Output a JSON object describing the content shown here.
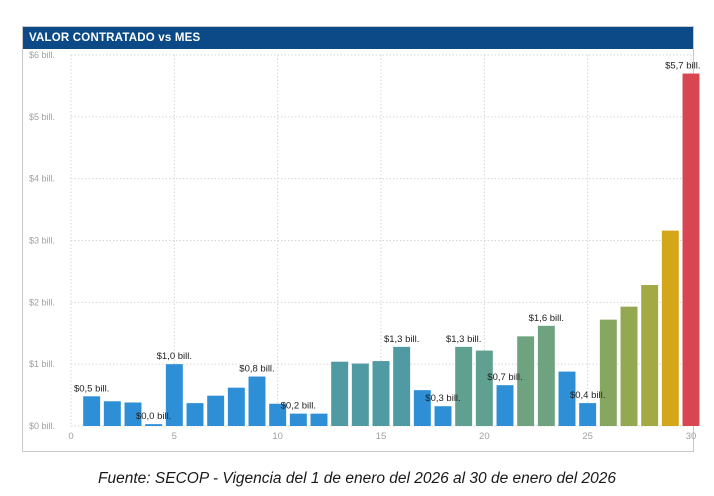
{
  "chart_title": "VALOR CONTRATADO vs MES",
  "source_text": "Fuente: SECOP - Vigencia del 1 de enero del 2026 al 30 de enero del 2026",
  "colors": {
    "header_bg": "#0b4a86",
    "grid": "#d6d6d6",
    "axis_text": "#a0a0a0",
    "label_text": "#222222"
  },
  "chart_data": {
    "type": "bar",
    "title": "VALOR CONTRATADO vs MES",
    "xlabel": "",
    "ylabel": "",
    "xlim": [
      0,
      30
    ],
    "ylim": [
      0,
      6
    ],
    "grid": true,
    "y_ticks": [
      {
        "value": 0,
        "label": "$0 bill."
      },
      {
        "value": 1,
        "label": "$1 bill."
      },
      {
        "value": 2,
        "label": "$2 bill."
      },
      {
        "value": 3,
        "label": "$3 bill."
      },
      {
        "value": 4,
        "label": "$4 bill."
      },
      {
        "value": 5,
        "label": "$5 bill."
      },
      {
        "value": 6,
        "label": "$6 bill."
      }
    ],
    "x_ticks": [
      {
        "value": 0,
        "label": "0"
      },
      {
        "value": 5,
        "label": "5"
      },
      {
        "value": 10,
        "label": "10"
      },
      {
        "value": 15,
        "label": "15"
      },
      {
        "value": 20,
        "label": "20"
      },
      {
        "value": 25,
        "label": "25"
      },
      {
        "value": 30,
        "label": "30"
      }
    ],
    "bars": [
      {
        "x": 1,
        "value": 0.48,
        "color": "#2e8fd6",
        "label": "$0,5 bill."
      },
      {
        "x": 2,
        "value": 0.4,
        "color": "#2e8fd6",
        "label": ""
      },
      {
        "x": 3,
        "value": 0.38,
        "color": "#2e8fd6",
        "label": ""
      },
      {
        "x": 4,
        "value": 0.03,
        "color": "#2e8fd6",
        "label": "$0,0 bill."
      },
      {
        "x": 5,
        "value": 1.0,
        "color": "#2e8fd6",
        "label": "$1,0 bill."
      },
      {
        "x": 6,
        "value": 0.37,
        "color": "#2e8fd6",
        "label": ""
      },
      {
        "x": 7,
        "value": 0.49,
        "color": "#2e8fd6",
        "label": ""
      },
      {
        "x": 8,
        "value": 0.62,
        "color": "#2e8fd6",
        "label": ""
      },
      {
        "x": 9,
        "value": 0.8,
        "color": "#2e8fd6",
        "label": "$0,8 bill."
      },
      {
        "x": 10,
        "value": 0.36,
        "color": "#2e8fd6",
        "label": ""
      },
      {
        "x": 11,
        "value": 0.2,
        "color": "#2e8fd6",
        "label": "$0,2 bill."
      },
      {
        "x": 12,
        "value": 0.2,
        "color": "#2e8fd6",
        "label": ""
      },
      {
        "x": 13,
        "value": 1.04,
        "color": "#4f9aa3",
        "label": ""
      },
      {
        "x": 14,
        "value": 1.01,
        "color": "#4f9aa3",
        "label": ""
      },
      {
        "x": 15,
        "value": 1.05,
        "color": "#4f9aa3",
        "label": ""
      },
      {
        "x": 16,
        "value": 1.28,
        "color": "#4f9aa3",
        "label": "$1,3 bill."
      },
      {
        "x": 17,
        "value": 0.58,
        "color": "#2e8fd6",
        "label": ""
      },
      {
        "x": 18,
        "value": 0.32,
        "color": "#2e8fd6",
        "label": "$0,3 bill."
      },
      {
        "x": 19,
        "value": 1.28,
        "color": "#5fa091",
        "label": "$1,3 bill."
      },
      {
        "x": 20,
        "value": 1.22,
        "color": "#5fa091",
        "label": ""
      },
      {
        "x": 21,
        "value": 0.66,
        "color": "#2e8fd6",
        "label": "$0,7 bill."
      },
      {
        "x": 22,
        "value": 1.45,
        "color": "#6fa380",
        "label": ""
      },
      {
        "x": 23,
        "value": 1.62,
        "color": "#6fa380",
        "label": "$1,6 bill."
      },
      {
        "x": 24,
        "value": 0.88,
        "color": "#2e8fd6",
        "label": ""
      },
      {
        "x": 25,
        "value": 0.37,
        "color": "#2e8fd6",
        "label": "$0,4 bill."
      },
      {
        "x": 26,
        "value": 1.72,
        "color": "#87a660",
        "label": ""
      },
      {
        "x": 27,
        "value": 1.93,
        "color": "#94a852",
        "label": ""
      },
      {
        "x": 28,
        "value": 2.28,
        "color": "#a3aa44",
        "label": ""
      },
      {
        "x": 29,
        "value": 3.16,
        "color": "#d4a61a",
        "label": ""
      },
      {
        "x": 30,
        "value": 5.7,
        "color": "#d84652",
        "label": "$5,7 bill."
      }
    ]
  }
}
